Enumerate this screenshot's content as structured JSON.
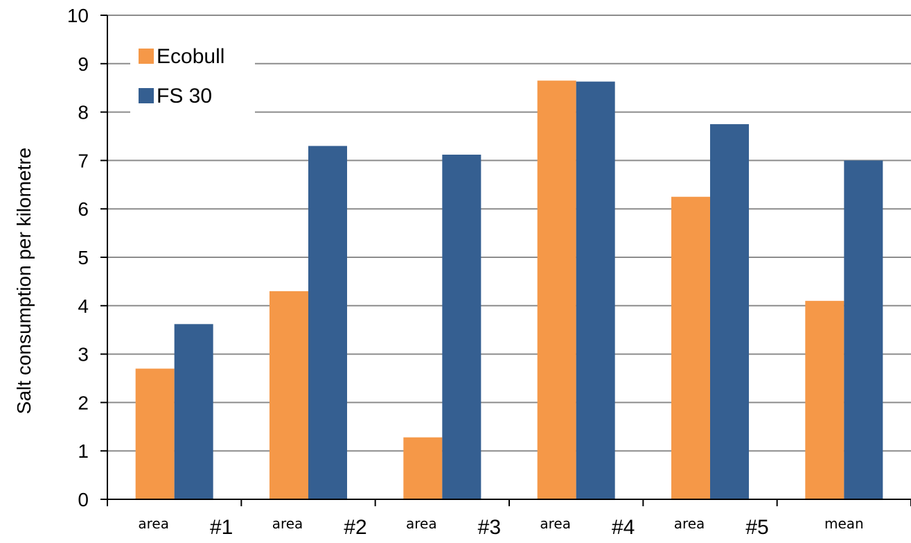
{
  "chart_data": {
    "type": "bar",
    "categories": [
      "area #1",
      "area #2",
      "area #3",
      "area #4",
      "area #5",
      "mean"
    ],
    "category_labels": [
      {
        "word": "area",
        "number": "#1"
      },
      {
        "word": "area",
        "number": "#2"
      },
      {
        "word": "area",
        "number": "#3"
      },
      {
        "word": "area",
        "number": "#4"
      },
      {
        "word": "area",
        "number": "#5"
      },
      {
        "word": "mean",
        "number": ""
      }
    ],
    "series": [
      {
        "name": "Ecobull",
        "color": "#F59848",
        "values": [
          2.7,
          4.3,
          1.28,
          8.65,
          6.25,
          4.1
        ]
      },
      {
        "name": "FS 30",
        "color": "#355F91",
        "values": [
          3.62,
          7.3,
          7.12,
          8.63,
          7.75,
          7.0
        ]
      }
    ],
    "title": "",
    "xlabel": "",
    "ylabel": "Salt consumption per kilometre",
    "ylim": [
      0,
      10
    ],
    "yticks": [
      "0",
      "1",
      "2",
      "3",
      "4",
      "5",
      "6",
      "7",
      "8",
      "9",
      "10"
    ],
    "grid": true,
    "legend_position": "top-left"
  }
}
